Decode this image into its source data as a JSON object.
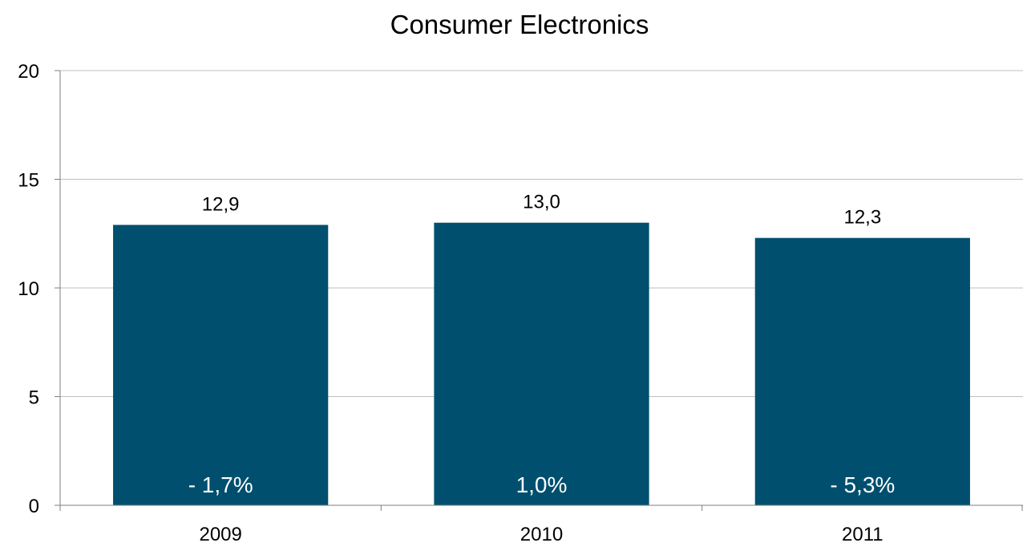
{
  "chart_data": {
    "type": "bar",
    "title": "Consumer Electronics",
    "categories": [
      "2009",
      "2010",
      "2011"
    ],
    "values": [
      12.9,
      13.0,
      12.3
    ],
    "value_labels": [
      "12,9",
      "13,0",
      "12,3"
    ],
    "growth_labels": [
      "- 1,7%",
      "1,0%",
      "- 5,3%"
    ],
    "yticks": [
      "0",
      "5",
      "10",
      "15",
      "20"
    ],
    "ylim": [
      0,
      20
    ],
    "grid": true,
    "bar_color": "#004F6E"
  }
}
